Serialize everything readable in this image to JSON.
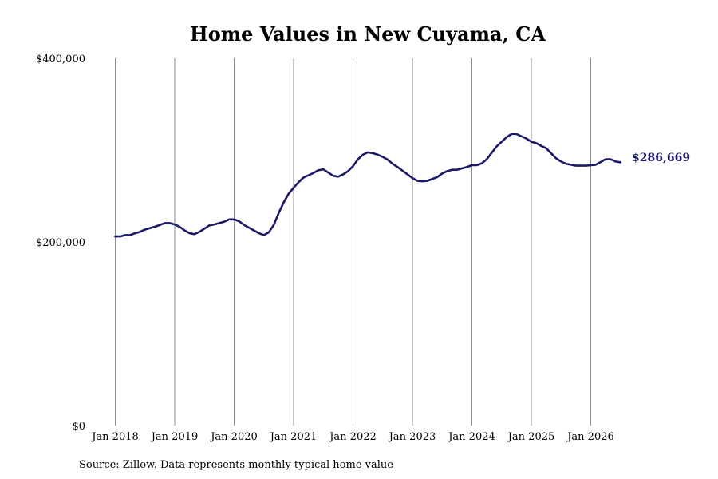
{
  "chart_data": {
    "type": "line",
    "title": "Home Values in New Cuyama, CA",
    "source": "Source: Zillow. Data represents monthly typical home value",
    "xlabel": "",
    "ylabel": "",
    "ylim": [
      0,
      400000
    ],
    "yticks": [
      0,
      200000,
      400000
    ],
    "ytick_labels": [
      "$0",
      "$200,000",
      "$400,000"
    ],
    "xtick_labels": [
      "Jan 2018",
      "Jan 2019",
      "Jan 2020",
      "Jan 2021",
      "Jan 2022",
      "Jan 2023",
      "Jan 2024",
      "Jan 2025",
      "Jan 2026"
    ],
    "xlim": [
      "2018-01",
      "2026-07"
    ],
    "grid": "vertical lines at each January",
    "legend": "none",
    "line_color": "#1a1a66",
    "end_label": "$286,669",
    "series": [
      {
        "name": "",
        "points": [
          [
            "2018-01",
            206000
          ],
          [
            "2018-02",
            206000
          ],
          [
            "2018-03",
            207500
          ],
          [
            "2018-04",
            207500
          ],
          [
            "2018-05",
            209500
          ],
          [
            "2018-06",
            211000
          ],
          [
            "2018-07",
            213500
          ],
          [
            "2018-08",
            215000
          ],
          [
            "2018-09",
            216500
          ],
          [
            "2018-10",
            218500
          ],
          [
            "2018-11",
            220500
          ],
          [
            "2018-12",
            220500
          ],
          [
            "2019-01",
            219000
          ],
          [
            "2019-02",
            216500
          ],
          [
            "2019-03",
            212500
          ],
          [
            "2019-04",
            209500
          ],
          [
            "2019-05",
            208500
          ],
          [
            "2019-06",
            211000
          ],
          [
            "2019-07",
            214500
          ],
          [
            "2019-08",
            218000
          ],
          [
            "2019-09",
            219000
          ],
          [
            "2019-10",
            220500
          ],
          [
            "2019-11",
            222000
          ],
          [
            "2019-12",
            224500
          ],
          [
            "2020-01",
            224500
          ],
          [
            "2020-02",
            222500
          ],
          [
            "2020-03",
            218500
          ],
          [
            "2020-04",
            215500
          ],
          [
            "2020-05",
            212500
          ],
          [
            "2020-06",
            209500
          ],
          [
            "2020-07",
            207500
          ],
          [
            "2020-08",
            210500
          ],
          [
            "2020-09",
            218500
          ],
          [
            "2020-10",
            231500
          ],
          [
            "2020-11",
            243000
          ],
          [
            "2020-12",
            252500
          ],
          [
            "2021-01",
            259000
          ],
          [
            "2021-02",
            265000
          ],
          [
            "2021-03",
            270000
          ],
          [
            "2021-04",
            272500
          ],
          [
            "2021-05",
            275000
          ],
          [
            "2021-06",
            278000
          ],
          [
            "2021-07",
            279000
          ],
          [
            "2021-08",
            275500
          ],
          [
            "2021-09",
            272000
          ],
          [
            "2021-10",
            271000
          ],
          [
            "2021-11",
            273500
          ],
          [
            "2021-12",
            277000
          ],
          [
            "2022-01",
            282500
          ],
          [
            "2022-02",
            290000
          ],
          [
            "2022-03",
            295000
          ],
          [
            "2022-04",
            297500
          ],
          [
            "2022-05",
            296500
          ],
          [
            "2022-06",
            295000
          ],
          [
            "2022-07",
            292500
          ],
          [
            "2022-08",
            289500
          ],
          [
            "2022-09",
            285000
          ],
          [
            "2022-10",
            281500
          ],
          [
            "2022-11",
            277500
          ],
          [
            "2022-12",
            273500
          ],
          [
            "2023-01",
            269500
          ],
          [
            "2023-02",
            266500
          ],
          [
            "2023-03",
            266000
          ],
          [
            "2023-04",
            266500
          ],
          [
            "2023-05",
            268500
          ],
          [
            "2023-06",
            270500
          ],
          [
            "2023-07",
            274500
          ],
          [
            "2023-08",
            277000
          ],
          [
            "2023-09",
            278500
          ],
          [
            "2023-10",
            278500
          ],
          [
            "2023-11",
            280000
          ],
          [
            "2023-12",
            281500
          ],
          [
            "2024-01",
            283500
          ],
          [
            "2024-02",
            283500
          ],
          [
            "2024-03",
            285500
          ],
          [
            "2024-04",
            290000
          ],
          [
            "2024-05",
            297000
          ],
          [
            "2024-06",
            304000
          ],
          [
            "2024-07",
            309000
          ],
          [
            "2024-08",
            314000
          ],
          [
            "2024-09",
            317500
          ],
          [
            "2024-10",
            317500
          ],
          [
            "2024-11",
            315000
          ],
          [
            "2024-12",
            312500
          ],
          [
            "2025-01",
            309000
          ],
          [
            "2025-02",
            307500
          ],
          [
            "2025-03",
            304500
          ],
          [
            "2025-04",
            302000
          ],
          [
            "2025-05",
            296500
          ],
          [
            "2025-06",
            291000
          ],
          [
            "2025-07",
            287500
          ],
          [
            "2025-08",
            285000
          ],
          [
            "2025-09",
            284000
          ],
          [
            "2025-10",
            283000
          ],
          [
            "2025-11",
            283000
          ],
          [
            "2025-12",
            283000
          ],
          [
            "2026-01",
            283500
          ],
          [
            "2026-02",
            284000
          ],
          [
            "2026-03",
            287000
          ],
          [
            "2026-04",
            290000
          ],
          [
            "2026-05",
            290000
          ],
          [
            "2026-06",
            287500
          ],
          [
            "2026-07",
            286669
          ]
        ]
      }
    ]
  }
}
